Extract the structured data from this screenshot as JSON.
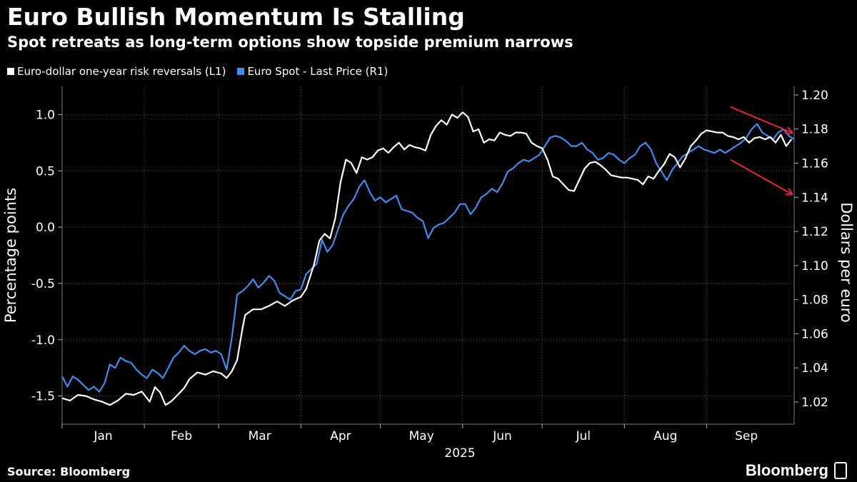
{
  "header": {
    "title": "Euro Bullish Momentum Is Stalling",
    "subtitle": "Spot retreats as long-term options show topside premium narrows"
  },
  "legend": [
    {
      "label": "Euro-dollar one-year risk reversals (L1)",
      "color": "#ffffff"
    },
    {
      "label": "Euro Spot - Last Price (R1)",
      "color": "#3b8dee"
    }
  ],
  "footer": {
    "source": "Source: Bloomberg",
    "brand": "Bloomberg"
  },
  "chart_data": {
    "type": "line",
    "title": "Euro Bullish Momentum Is Stalling",
    "subtitle": "Spot retreats as long-term options show topside premium narrows",
    "x_label": "2025",
    "x_months": [
      "Jan",
      "Feb",
      "Mar",
      "Apr",
      "May",
      "Jun",
      "Jul",
      "Aug",
      "Sep"
    ],
    "x_month_starts": [
      1,
      32,
      60,
      91,
      121,
      152,
      182,
      213,
      244
    ],
    "x_range": [
      1,
      277
    ],
    "left_axis": {
      "label": "Percentage points",
      "range": [
        -1.75,
        1.25
      ],
      "ticks": [
        -1.5,
        -1.0,
        -0.5,
        0.0,
        0.5,
        1.0
      ],
      "tick_labels": [
        "-1.5",
        "-1.0",
        "-0.5",
        "0.0",
        "0.5",
        "1.0"
      ]
    },
    "right_axis": {
      "label": "Dollars per euro",
      "range": [
        1.007,
        1.205
      ],
      "ticks": [
        1.02,
        1.04,
        1.06,
        1.08,
        1.1,
        1.12,
        1.14,
        1.16,
        1.18,
        1.2
      ],
      "tick_labels": [
        "1.02",
        "1.04",
        "1.06",
        "1.08",
        "1.10",
        "1.12",
        "1.14",
        "1.16",
        "1.18",
        "1.20"
      ]
    },
    "grid": true,
    "series": [
      {
        "name": "Euro-dollar one-year risk reversals (L1)",
        "axis": "left",
        "color": "#ffffff",
        "points": [
          [
            1,
            -1.52
          ],
          [
            4,
            -1.54
          ],
          [
            7,
            -1.49
          ],
          [
            10,
            -1.5
          ],
          [
            13,
            -1.53
          ],
          [
            16,
            -1.55
          ],
          [
            19,
            -1.58
          ],
          [
            22,
            -1.54
          ],
          [
            25,
            -1.48
          ],
          [
            28,
            -1.49
          ],
          [
            31,
            -1.46
          ],
          [
            34,
            -1.55
          ],
          [
            36,
            -1.42
          ],
          [
            38,
            -1.47
          ],
          [
            40,
            -1.58
          ],
          [
            42,
            -1.55
          ],
          [
            45,
            -1.48
          ],
          [
            47,
            -1.43
          ],
          [
            49,
            -1.35
          ],
          [
            52,
            -1.29
          ],
          [
            55,
            -1.31
          ],
          [
            58,
            -1.28
          ],
          [
            61,
            -1.3
          ],
          [
            63,
            -1.34
          ],
          [
            65,
            -1.28
          ],
          [
            67,
            -1.18
          ],
          [
            69,
            -0.9
          ],
          [
            70,
            -0.78
          ],
          [
            73,
            -0.73
          ],
          [
            76,
            -0.73
          ],
          [
            79,
            -0.7
          ],
          [
            82,
            -0.66
          ],
          [
            85,
            -0.7
          ],
          [
            88,
            -0.65
          ],
          [
            91,
            -0.62
          ],
          [
            93,
            -0.55
          ],
          [
            96,
            -0.33
          ],
          [
            98,
            -0.12
          ],
          [
            100,
            -0.06
          ],
          [
            102,
            -0.1
          ],
          [
            104,
            0.08
          ],
          [
            106,
            0.4
          ],
          [
            108,
            0.6
          ],
          [
            110,
            0.57
          ],
          [
            112,
            0.48
          ],
          [
            114,
            0.62
          ],
          [
            116,
            0.6
          ],
          [
            118,
            0.62
          ],
          [
            120,
            0.68
          ],
          [
            122,
            0.7
          ],
          [
            124,
            0.66
          ],
          [
            126,
            0.71
          ],
          [
            128,
            0.75
          ],
          [
            130,
            0.69
          ],
          [
            132,
            0.73
          ],
          [
            134,
            0.71
          ],
          [
            136,
            0.7
          ],
          [
            138,
            0.68
          ],
          [
            140,
            0.82
          ],
          [
            142,
            0.9
          ],
          [
            144,
            0.95
          ],
          [
            146,
            0.91
          ],
          [
            148,
            1.0
          ],
          [
            150,
            0.97
          ],
          [
            152,
            1.02
          ],
          [
            154,
            0.98
          ],
          [
            156,
            0.85
          ],
          [
            158,
            0.87
          ],
          [
            160,
            0.75
          ],
          [
            162,
            0.78
          ],
          [
            164,
            0.77
          ],
          [
            166,
            0.84
          ],
          [
            168,
            0.82
          ],
          [
            170,
            0.81
          ],
          [
            172,
            0.84
          ],
          [
            174,
            0.84
          ],
          [
            176,
            0.83
          ],
          [
            178,
            0.75
          ],
          [
            180,
            0.72
          ],
          [
            182,
            0.7
          ],
          [
            184,
            0.6
          ],
          [
            186,
            0.45
          ],
          [
            188,
            0.43
          ],
          [
            190,
            0.38
          ],
          [
            192,
            0.33
          ],
          [
            194,
            0.32
          ],
          [
            196,
            0.42
          ],
          [
            198,
            0.52
          ],
          [
            200,
            0.57
          ],
          [
            202,
            0.58
          ],
          [
            204,
            0.55
          ],
          [
            206,
            0.51
          ],
          [
            208,
            0.46
          ],
          [
            210,
            0.45
          ],
          [
            212,
            0.44
          ],
          [
            214,
            0.44
          ],
          [
            216,
            0.43
          ],
          [
            218,
            0.42
          ],
          [
            220,
            0.38
          ],
          [
            222,
            0.45
          ],
          [
            224,
            0.43
          ],
          [
            226,
            0.5
          ],
          [
            228,
            0.56
          ],
          [
            230,
            0.65
          ],
          [
            232,
            0.62
          ],
          [
            234,
            0.53
          ],
          [
            236,
            0.61
          ],
          [
            238,
            0.72
          ],
          [
            240,
            0.77
          ],
          [
            242,
            0.83
          ],
          [
            244,
            0.86
          ],
          [
            246,
            0.85
          ],
          [
            248,
            0.84
          ],
          [
            250,
            0.84
          ],
          [
            252,
            0.81
          ],
          [
            254,
            0.8
          ],
          [
            256,
            0.78
          ],
          [
            258,
            0.8
          ],
          [
            260,
            0.75
          ],
          [
            262,
            0.79
          ],
          [
            264,
            0.8
          ],
          [
            266,
            0.78
          ],
          [
            268,
            0.8
          ],
          [
            270,
            0.75
          ],
          [
            272,
            0.82
          ],
          [
            274,
            0.72
          ],
          [
            276,
            0.78
          ]
        ]
      },
      {
        "name": "Euro Spot - Last Price (R1)",
        "axis": "right",
        "color": "#3b8dee",
        "points": [
          [
            1,
            1.035
          ],
          [
            3,
            1.029
          ],
          [
            5,
            1.035
          ],
          [
            7,
            1.033
          ],
          [
            9,
            1.03
          ],
          [
            11,
            1.027
          ],
          [
            13,
            1.029
          ],
          [
            15,
            1.026
          ],
          [
            17,
            1.031
          ],
          [
            19,
            1.042
          ],
          [
            21,
            1.04
          ],
          [
            23,
            1.046
          ],
          [
            25,
            1.044
          ],
          [
            27,
            1.043
          ],
          [
            29,
            1.039
          ],
          [
            31,
            1.036
          ],
          [
            33,
            1.034
          ],
          [
            35,
            1.039
          ],
          [
            37,
            1.037
          ],
          [
            39,
            1.034
          ],
          [
            41,
            1.04
          ],
          [
            43,
            1.046
          ],
          [
            45,
            1.049
          ],
          [
            47,
            1.053
          ],
          [
            49,
            1.05
          ],
          [
            51,
            1.048
          ],
          [
            53,
            1.05
          ],
          [
            55,
            1.051
          ],
          [
            57,
            1.049
          ],
          [
            59,
            1.05
          ],
          [
            61,
            1.048
          ],
          [
            63,
            1.039
          ],
          [
            65,
            1.058
          ],
          [
            67,
            1.083
          ],
          [
            69,
            1.085
          ],
          [
            71,
            1.088
          ],
          [
            73,
            1.092
          ],
          [
            75,
            1.087
          ],
          [
            77,
            1.09
          ],
          [
            79,
            1.094
          ],
          [
            81,
            1.091
          ],
          [
            83,
            1.084
          ],
          [
            85,
            1.082
          ],
          [
            87,
            1.08
          ],
          [
            89,
            1.085
          ],
          [
            91,
            1.086
          ],
          [
            93,
            1.095
          ],
          [
            95,
            1.098
          ],
          [
            97,
            1.101
          ],
          [
            99,
            1.115
          ],
          [
            101,
            1.108
          ],
          [
            103,
            1.112
          ],
          [
            105,
            1.121
          ],
          [
            107,
            1.13
          ],
          [
            109,
            1.135
          ],
          [
            111,
            1.139
          ],
          [
            113,
            1.146
          ],
          [
            115,
            1.15
          ],
          [
            117,
            1.143
          ],
          [
            119,
            1.138
          ],
          [
            121,
            1.14
          ],
          [
            123,
            1.137
          ],
          [
            125,
            1.139
          ],
          [
            127,
            1.141
          ],
          [
            129,
            1.133
          ],
          [
            131,
            1.132
          ],
          [
            133,
            1.131
          ],
          [
            135,
            1.128
          ],
          [
            137,
            1.126
          ],
          [
            139,
            1.116
          ],
          [
            141,
            1.122
          ],
          [
            143,
            1.124
          ],
          [
            145,
            1.125
          ],
          [
            147,
            1.128
          ],
          [
            149,
            1.131
          ],
          [
            151,
            1.136
          ],
          [
            153,
            1.136
          ],
          [
            155,
            1.13
          ],
          [
            157,
            1.134
          ],
          [
            159,
            1.14
          ],
          [
            161,
            1.142
          ],
          [
            163,
            1.145
          ],
          [
            165,
            1.143
          ],
          [
            167,
            1.148
          ],
          [
            169,
            1.155
          ],
          [
            171,
            1.157
          ],
          [
            173,
            1.16
          ],
          [
            175,
            1.162
          ],
          [
            177,
            1.161
          ],
          [
            179,
            1.163
          ],
          [
            181,
            1.165
          ],
          [
            183,
            1.17
          ],
          [
            185,
            1.175
          ],
          [
            187,
            1.176
          ],
          [
            189,
            1.175
          ],
          [
            191,
            1.173
          ],
          [
            193,
            1.17
          ],
          [
            195,
            1.17
          ],
          [
            197,
            1.172
          ],
          [
            199,
            1.168
          ],
          [
            201,
            1.166
          ],
          [
            203,
            1.162
          ],
          [
            205,
            1.163
          ],
          [
            207,
            1.166
          ],
          [
            209,
            1.165
          ],
          [
            211,
            1.162
          ],
          [
            213,
            1.16
          ],
          [
            215,
            1.163
          ],
          [
            217,
            1.165
          ],
          [
            219,
            1.17
          ],
          [
            221,
            1.172
          ],
          [
            223,
            1.168
          ],
          [
            225,
            1.16
          ],
          [
            227,
            1.155
          ],
          [
            229,
            1.15
          ],
          [
            231,
            1.156
          ],
          [
            233,
            1.16
          ],
          [
            235,
            1.164
          ],
          [
            237,
            1.166
          ],
          [
            239,
            1.168
          ],
          [
            241,
            1.17
          ],
          [
            243,
            1.168
          ],
          [
            245,
            1.167
          ],
          [
            247,
            1.166
          ],
          [
            249,
            1.168
          ],
          [
            251,
            1.166
          ],
          [
            253,
            1.168
          ],
          [
            255,
            1.17
          ],
          [
            257,
            1.172
          ],
          [
            259,
            1.175
          ],
          [
            261,
            1.18
          ],
          [
            263,
            1.183
          ],
          [
            265,
            1.178
          ],
          [
            267,
            1.176
          ],
          [
            269,
            1.174
          ],
          [
            271,
            1.178
          ],
          [
            273,
            1.18
          ],
          [
            275,
            1.176
          ],
          [
            277,
            1.174
          ]
        ]
      }
    ],
    "annotations": [
      {
        "type": "arrow",
        "color": "#e8243b",
        "from": [
          253,
          1.193
        ],
        "to": [
          276,
          1.178
        ],
        "axis": "right"
      },
      {
        "type": "arrow",
        "color": "#e8243b",
        "from": [
          253,
          1.162
        ],
        "to": [
          276,
          1.142
        ],
        "axis": "right"
      }
    ]
  }
}
